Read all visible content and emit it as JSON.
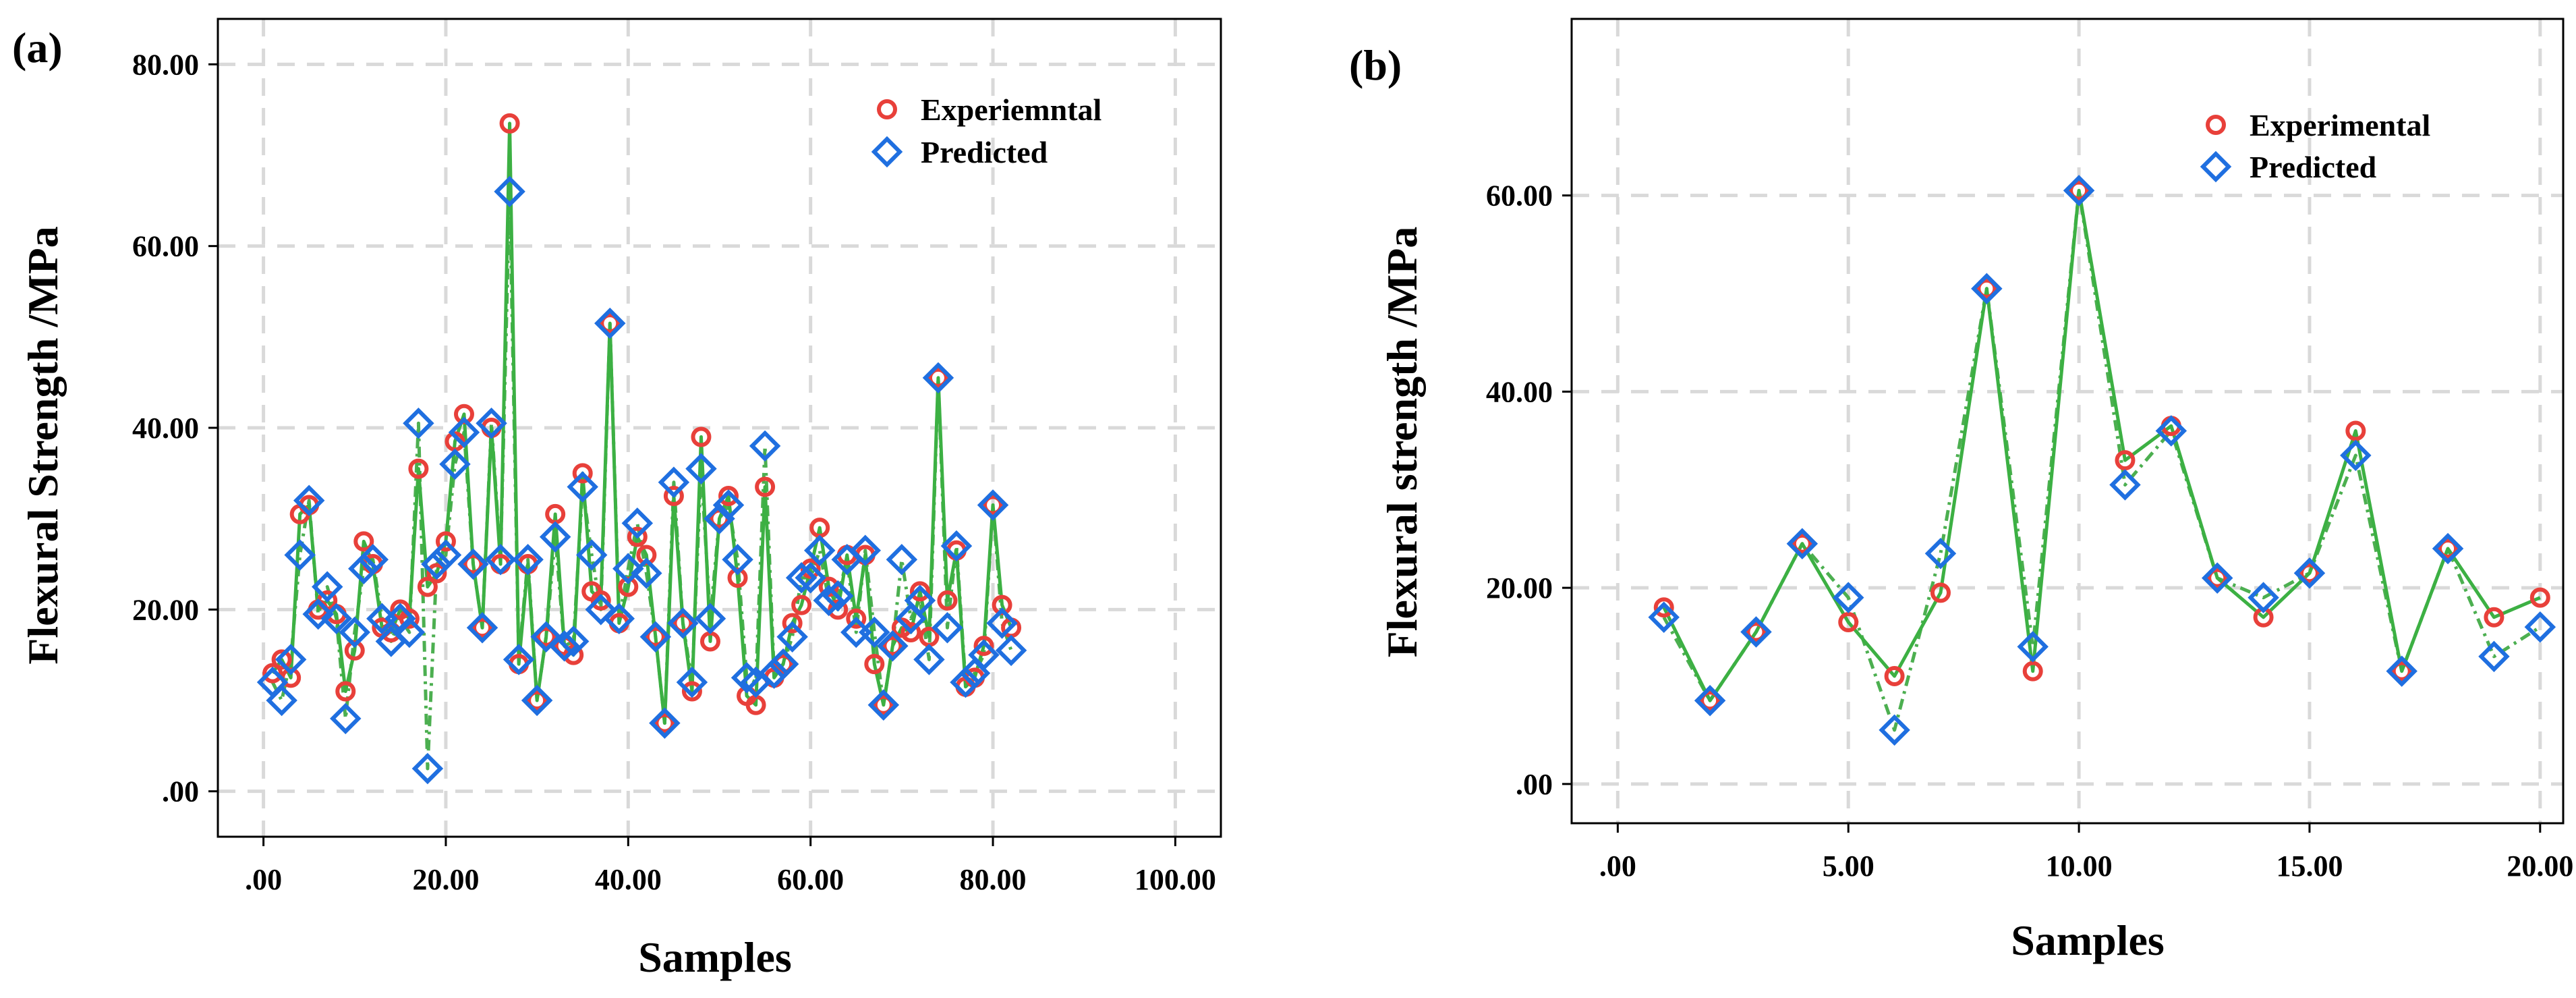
{
  "chart_data": [
    {
      "panel_label": "(a)",
      "type": "line",
      "xlabel": "Samples",
      "ylabel": "Flexural Strength /MPa",
      "xlim": [
        -5,
        105
      ],
      "ylim": [
        -5,
        85
      ],
      "xticks": [
        0,
        20,
        40,
        60,
        80,
        100
      ],
      "xtick_labels": [
        ".00",
        "20.00",
        "40.00",
        "60.00",
        "80.00",
        "100.00"
      ],
      "yticks": [
        0,
        20,
        40,
        60,
        80
      ],
      "ytick_labels": [
        ".00",
        "20.00",
        "40.00",
        "60.00",
        "80.00"
      ],
      "grid": true,
      "legend_position": "top-right",
      "x": [
        1,
        2,
        3,
        4,
        5,
        6,
        7,
        8,
        9,
        10,
        11,
        12,
        13,
        14,
        15,
        16,
        17,
        18,
        19,
        20,
        21,
        22,
        23,
        24,
        25,
        26,
        27,
        28,
        29,
        30,
        31,
        32,
        33,
        34,
        35,
        36,
        37,
        38,
        39,
        40,
        41,
        42,
        43,
        44,
        45,
        46,
        47,
        48,
        49,
        50,
        51,
        52,
        53,
        54,
        55,
        56,
        57,
        58,
        59,
        60,
        61,
        62,
        63,
        64,
        65,
        66,
        67,
        68,
        69,
        70,
        71,
        72,
        73,
        74,
        75,
        76,
        77,
        78,
        79,
        80,
        81,
        82
      ],
      "series": [
        {
          "name": "Experiemntal",
          "marker": "circle",
          "color": "#e8403a",
          "line_style": "solid",
          "values": [
            13,
            14.5,
            12.5,
            30.5,
            31.5,
            20,
            21,
            19.5,
            11,
            15.5,
            27.5,
            25,
            18,
            17.5,
            20,
            19,
            35.5,
            22.5,
            24,
            27.5,
            38.5,
            41.5,
            25,
            18,
            40,
            25,
            73.5,
            14,
            25,
            10,
            17,
            30.5,
            16,
            15,
            35,
            22,
            21,
            51.5,
            18.5,
            22.5,
            28,
            26,
            17,
            7.5,
            32.5,
            18.5,
            11,
            39,
            16.5,
            30,
            32.5,
            23.5,
            10.5,
            9.5,
            33.5,
            12.5,
            14,
            18.5,
            20.5,
            24.5,
            29,
            22.5,
            20,
            26,
            19,
            26,
            14,
            9.5,
            16,
            18,
            17.5,
            22,
            17,
            45.5,
            21,
            26.5,
            11.5,
            12.5,
            16,
            31.5,
            20.5,
            18
          ]
        },
        {
          "name": "Predicted",
          "marker": "diamond",
          "color": "#1f6fe0",
          "line_style": "dash-dot",
          "values": [
            12,
            10,
            14.5,
            26,
            32,
            19.5,
            22.5,
            19,
            8,
            17.5,
            24.5,
            25.5,
            19,
            16.5,
            19,
            17.5,
            40.5,
            2.5,
            25,
            26,
            36,
            39.5,
            25,
            18,
            40.5,
            25.5,
            66,
            14.5,
            25.5,
            10,
            17,
            28,
            16,
            16.5,
            33.5,
            26,
            20,
            51.5,
            19,
            24.5,
            29.5,
            24,
            17,
            7.5,
            34,
            18.5,
            12,
            35.5,
            19,
            30,
            31.5,
            25.5,
            12.5,
            12,
            38,
            13,
            14,
            17,
            23.5,
            23.5,
            26.5,
            21,
            21.5,
            25.5,
            17.5,
            26.5,
            17.5,
            9.5,
            16,
            25.5,
            19,
            21,
            14.5,
            45.5,
            18,
            27,
            12,
            13,
            15,
            31.5,
            18.5,
            15.5
          ]
        }
      ]
    },
    {
      "panel_label": "(b)",
      "type": "line",
      "xlabel": "Samples",
      "ylabel": "Flexural strength /MPa",
      "xlim": [
        -1,
        20.5
      ],
      "ylim": [
        -4,
        78
      ],
      "xticks": [
        0,
        5,
        10,
        15,
        20
      ],
      "xtick_labels": [
        ".00",
        "5.00",
        "10.00",
        "15.00",
        "20.00"
      ],
      "yticks": [
        0,
        20,
        40,
        60
      ],
      "ytick_labels": [
        ".00",
        "20.00",
        "40.00",
        "60.00"
      ],
      "grid": true,
      "legend_position": "top-right",
      "x": [
        1,
        2,
        3,
        4,
        5,
        6,
        7,
        8,
        9,
        10,
        11,
        12,
        13,
        14,
        15,
        16,
        17,
        18,
        19,
        20
      ],
      "series": [
        {
          "name": "Experimental",
          "marker": "circle",
          "color": "#e8403a",
          "line_style": "solid",
          "values": [
            18,
            8.5,
            15.5,
            24.5,
            16.5,
            11,
            19.5,
            50.5,
            11.5,
            60.5,
            33,
            36.5,
            21,
            17,
            21.5,
            36,
            11.5,
            24,
            17,
            19
          ]
        },
        {
          "name": "Predicted",
          "marker": "diamond",
          "color": "#1f6fe0",
          "line_style": "dash-dot",
          "values": [
            17,
            8.5,
            15.5,
            24.5,
            19,
            5.5,
            23.5,
            50.5,
            14,
            60.5,
            30.5,
            36,
            21,
            19,
            21.5,
            33.5,
            11.5,
            24,
            13,
            16
          ]
        }
      ]
    }
  ]
}
